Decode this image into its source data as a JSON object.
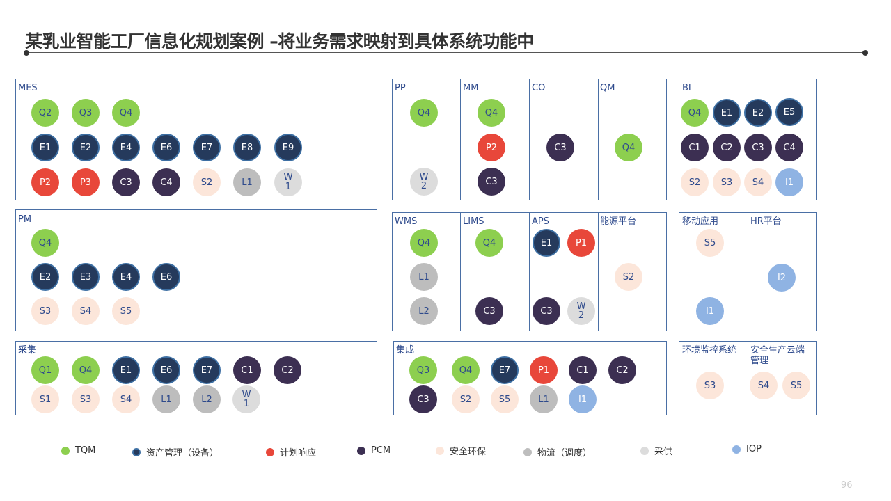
{
  "title": "某乳业智能工厂信息化规划案例 –将业务需求映射到具体系统功能中",
  "page_number": "96",
  "colors": {
    "tqm": "#8dcf4f",
    "asset": "#253a5c",
    "plan": "#e8473a",
    "pcm": "#3c2f52",
    "safe": "#fce6da",
    "log": "#bdbdbd",
    "pur": "#dcdcdc",
    "iop": "#8fb3e3",
    "border": "#4a6fa5"
  },
  "legend": [
    {
      "cat": "tqm",
      "label": "TQM"
    },
    {
      "cat": "asset",
      "label": "资产管理（设备）"
    },
    {
      "cat": "plan",
      "label": "计划响应"
    },
    {
      "cat": "pcm",
      "label": "PCM"
    },
    {
      "cat": "safe",
      "label": "安全环保"
    },
    {
      "cat": "log",
      "label": "物流（调度）"
    },
    {
      "cat": "pur",
      "label": "采供"
    },
    {
      "cat": "iop",
      "label": "IOP"
    }
  ],
  "modules": {
    "mes": "MES",
    "pm": "PM",
    "caiji": "采集",
    "pp": "PP",
    "mm": "MM",
    "co": "CO",
    "qm": "QM",
    "wms": "WMS",
    "lims": "LIMS",
    "aps": "APS",
    "energy": "能源平台",
    "jicheng": "集成",
    "bi": "BI",
    "mobile": "移动应用",
    "hr": "HR平台",
    "env": "环境监控系统",
    "safety_cloud": "安全生产云端管理"
  },
  "circles": {
    "mes": [
      {
        "t": "Q2",
        "c": "tqm"
      },
      {
        "t": "Q3",
        "c": "tqm"
      },
      {
        "t": "Q4",
        "c": "tqm"
      },
      {
        "t": "E1",
        "c": "asset"
      },
      {
        "t": "E2",
        "c": "asset"
      },
      {
        "t": "E4",
        "c": "asset"
      },
      {
        "t": "E6",
        "c": "asset"
      },
      {
        "t": "E7",
        "c": "asset"
      },
      {
        "t": "E8",
        "c": "asset"
      },
      {
        "t": "E9",
        "c": "asset"
      },
      {
        "t": "P2",
        "c": "plan"
      },
      {
        "t": "P3",
        "c": "plan"
      },
      {
        "t": "C3",
        "c": "pcm"
      },
      {
        "t": "C4",
        "c": "pcm"
      },
      {
        "t": "S2",
        "c": "safe"
      },
      {
        "t": "L1",
        "c": "log"
      },
      {
        "t": "W\n1",
        "c": "pur"
      }
    ],
    "pm": [
      {
        "t": "Q4",
        "c": "tqm"
      },
      {
        "t": "E2",
        "c": "asset"
      },
      {
        "t": "E3",
        "c": "asset"
      },
      {
        "t": "E4",
        "c": "asset"
      },
      {
        "t": "E6",
        "c": "asset"
      },
      {
        "t": "S3",
        "c": "safe"
      },
      {
        "t": "S4",
        "c": "safe"
      },
      {
        "t": "S5",
        "c": "safe"
      }
    ],
    "caiji": [
      {
        "t": "Q1",
        "c": "tqm"
      },
      {
        "t": "Q4",
        "c": "tqm"
      },
      {
        "t": "E1",
        "c": "asset"
      },
      {
        "t": "E6",
        "c": "asset"
      },
      {
        "t": "E7",
        "c": "asset"
      },
      {
        "t": "C1",
        "c": "pcm"
      },
      {
        "t": "C2",
        "c": "pcm"
      },
      {
        "t": "S1",
        "c": "safe"
      },
      {
        "t": "S3",
        "c": "safe"
      },
      {
        "t": "S4",
        "c": "safe"
      },
      {
        "t": "L1",
        "c": "log"
      },
      {
        "t": "L2",
        "c": "log"
      },
      {
        "t": "W\n1",
        "c": "pur"
      }
    ],
    "pp": [
      {
        "t": "Q4",
        "c": "tqm"
      },
      {
        "t": "W\n2",
        "c": "pur"
      }
    ],
    "mm": [
      {
        "t": "Q4",
        "c": "tqm"
      },
      {
        "t": "P2",
        "c": "plan"
      },
      {
        "t": "C3",
        "c": "pcm"
      }
    ],
    "co": [
      {
        "t": "C3",
        "c": "pcm"
      }
    ],
    "qm": [
      {
        "t": "Q4",
        "c": "tqm"
      }
    ],
    "bi": [
      {
        "t": "Q4",
        "c": "tqm"
      },
      {
        "t": "E1",
        "c": "asset"
      },
      {
        "t": "E2",
        "c": "asset"
      },
      {
        "t": "E5",
        "c": "asset"
      },
      {
        "t": "C1",
        "c": "pcm"
      },
      {
        "t": "C2",
        "c": "pcm"
      },
      {
        "t": "C3",
        "c": "pcm"
      },
      {
        "t": "C4",
        "c": "pcm"
      },
      {
        "t": "S2",
        "c": "safe"
      },
      {
        "t": "S3",
        "c": "safe"
      },
      {
        "t": "S4",
        "c": "safe"
      },
      {
        "t": "I1",
        "c": "iop"
      }
    ],
    "wms": [
      {
        "t": "Q4",
        "c": "tqm"
      },
      {
        "t": "L1",
        "c": "log"
      },
      {
        "t": "L2",
        "c": "log"
      }
    ],
    "lims": [
      {
        "t": "Q4",
        "c": "tqm"
      },
      {
        "t": "C3",
        "c": "pcm"
      }
    ],
    "aps": [
      {
        "t": "E1",
        "c": "asset"
      },
      {
        "t": "P1",
        "c": "plan"
      },
      {
        "t": "C3",
        "c": "pcm"
      },
      {
        "t": "W\n2",
        "c": "pur"
      }
    ],
    "energy": [
      {
        "t": "S2",
        "c": "safe"
      }
    ],
    "mobile": [
      {
        "t": "S5",
        "c": "safe"
      },
      {
        "t": "I1",
        "c": "iop"
      }
    ],
    "hr": [
      {
        "t": "I2",
        "c": "iop"
      }
    ],
    "jicheng": [
      {
        "t": "Q3",
        "c": "tqm"
      },
      {
        "t": "Q4",
        "c": "tqm"
      },
      {
        "t": "E7",
        "c": "asset"
      },
      {
        "t": "P1",
        "c": "plan"
      },
      {
        "t": "C1",
        "c": "pcm"
      },
      {
        "t": "C2",
        "c": "pcm"
      },
      {
        "t": "C3",
        "c": "pcm"
      },
      {
        "t": "S2",
        "c": "safe"
      },
      {
        "t": "S5",
        "c": "safe"
      },
      {
        "t": "L1",
        "c": "log"
      },
      {
        "t": "I1",
        "c": "iop"
      }
    ],
    "env": [
      {
        "t": "S3",
        "c": "safe"
      }
    ],
    "safety_cloud": [
      {
        "t": "S4",
        "c": "safe"
      },
      {
        "t": "S5",
        "c": "safe"
      }
    ]
  }
}
